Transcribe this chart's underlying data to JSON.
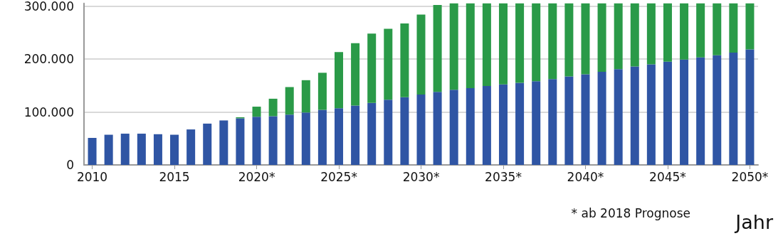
{
  "chart_data": {
    "type": "bar",
    "stacked": true,
    "xlabel": "Jahr",
    "annotations": [
      "* ab 2018 Prognose"
    ],
    "categories": [
      "2010",
      null,
      null,
      null,
      null,
      "2015",
      null,
      null,
      null,
      null,
      "2020*",
      null,
      null,
      null,
      null,
      "2025*",
      null,
      null,
      null,
      null,
      "2030*",
      null,
      null,
      null,
      null,
      "2035*",
      null,
      null,
      null,
      null,
      "2040*",
      null,
      null,
      null,
      null,
      "2045*",
      null,
      null,
      null,
      null,
      "2050*"
    ],
    "series": [
      {
        "color": "#2f55a4",
        "values": [
          51000,
          57000,
          59000,
          59000,
          58000,
          57000,
          67000,
          78000,
          84000,
          88000,
          91000,
          92000,
          95000,
          99000,
          104000,
          107000,
          112000,
          117000,
          123000,
          128000,
          133000,
          138000,
          142000,
          145000,
          149000,
          152000,
          155000,
          158000,
          162000,
          167000,
          171000,
          176000,
          181000,
          186000,
          190000,
          195000,
          199000,
          203000,
          207000,
          212000,
          218000
        ]
      },
      {
        "color": "#2a9a48",
        "values": [
          null,
          null,
          null,
          null,
          null,
          null,
          null,
          null,
          null,
          2000,
          19000,
          33000,
          52000,
          61000,
          70000,
          106000,
          118000,
          131000,
          134000,
          139000,
          151000,
          164000,
          163000,
          160000,
          156000,
          153000,
          150000,
          147000,
          143000,
          138000,
          134000,
          129000,
          124000,
          119000,
          115000,
          110000,
          106000,
          102000,
          98000,
          93000,
          87000
        ]
      }
    ],
    "ylim": [
      0,
      305000
    ],
    "yticks": [
      0,
      {
        "value": 100000,
        "label": "100.000"
      },
      {
        "value": 200000,
        "label": "200.000"
      },
      {
        "value": 300000,
        "label": "300.000"
      }
    ],
    "grid": "y"
  }
}
